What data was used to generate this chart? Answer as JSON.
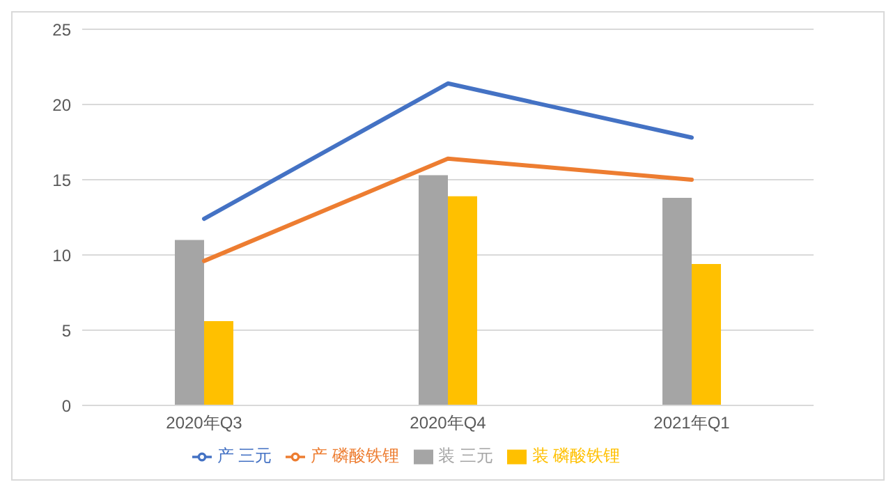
{
  "chart_data": {
    "type": "bar",
    "categories": [
      "2020年Q3",
      "2020年Q4",
      "2021年Q1"
    ],
    "series": [
      {
        "name": "装 三元",
        "color": "#a5a5a5",
        "values": [
          11.0,
          15.3,
          13.8
        ]
      },
      {
        "name": "装 磷酸铁锂",
        "color": "#ffc000",
        "values": [
          5.6,
          13.9,
          9.4
        ]
      },
      {
        "name": "产 三元",
        "type": "line",
        "color": "#4472c4",
        "values": [
          12.4,
          21.4,
          17.8
        ]
      },
      {
        "name": "产 磷酸铁锂",
        "type": "line",
        "color": "#ed7d31",
        "values": [
          9.6,
          16.4,
          15.0
        ]
      }
    ],
    "ylim": [
      0,
      25
    ],
    "yticks": [
      0,
      5,
      10,
      15,
      20,
      25
    ],
    "grid": "y",
    "legend": "bottom",
    "marker": "none"
  }
}
